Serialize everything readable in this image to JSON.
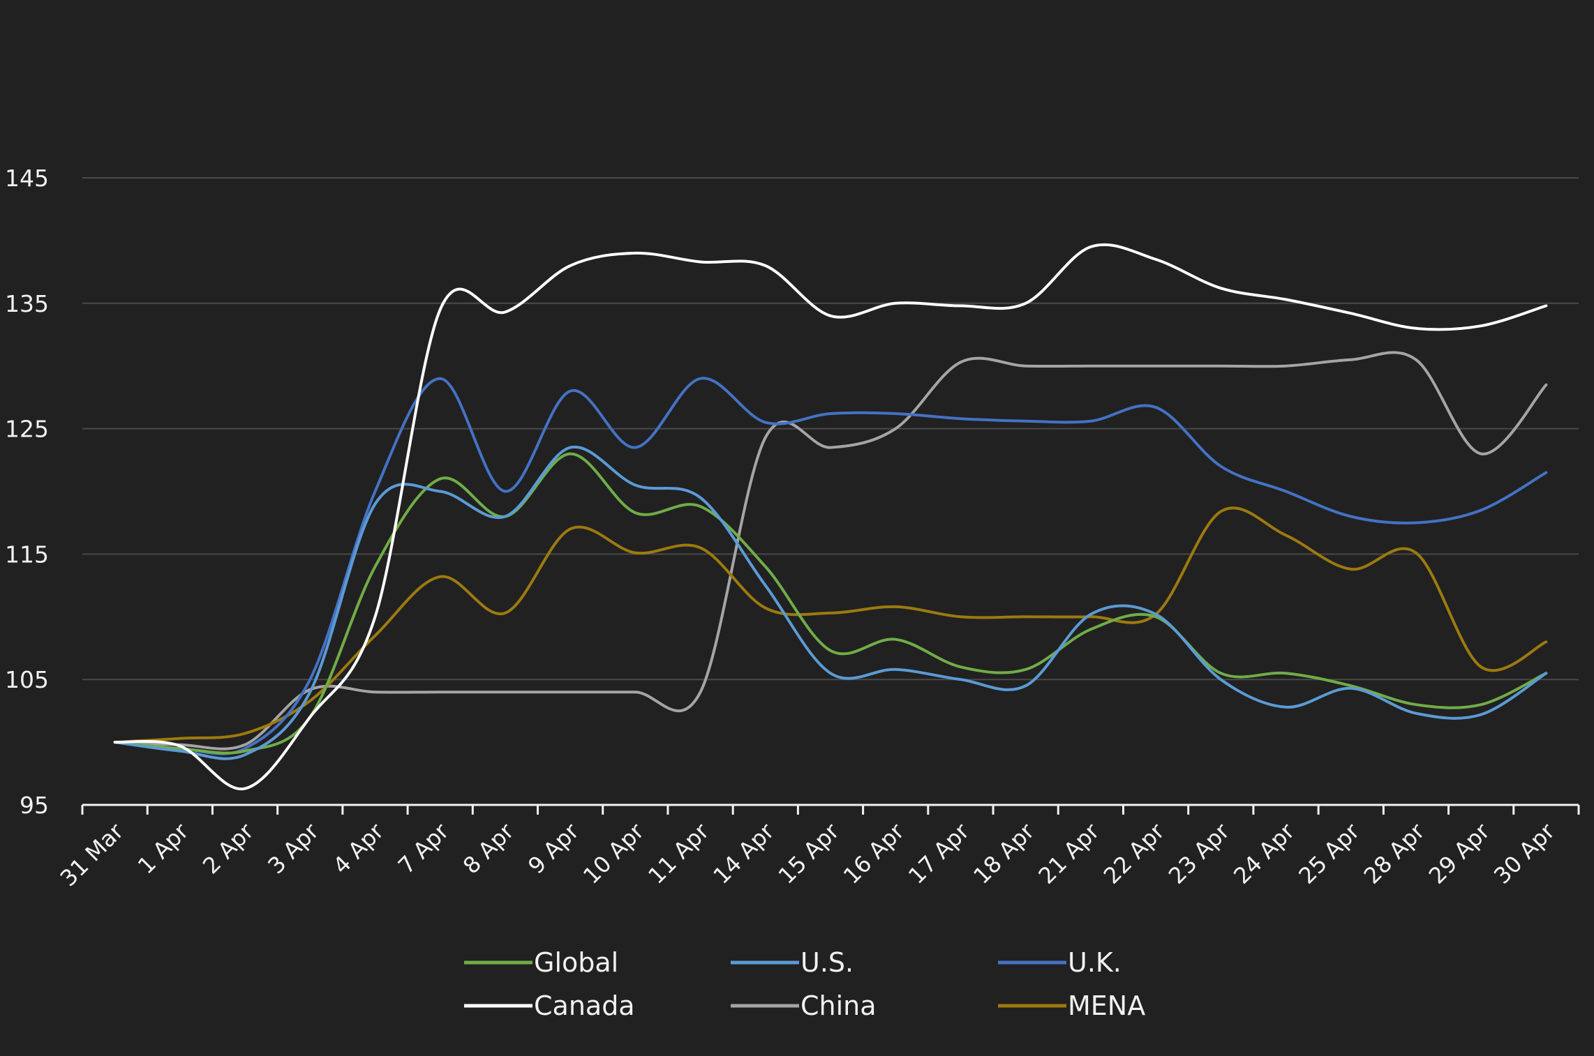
{
  "chart_data": {
    "type": "line",
    "title": "",
    "xlabel": "",
    "ylabel": "",
    "ylim": [
      95,
      145
    ],
    "yticks": [
      95,
      105,
      115,
      125,
      135,
      145
    ],
    "grid": true,
    "legend_position": "bottom",
    "categories": [
      "31 Mar",
      "1 Apr",
      "2 Apr",
      "3 Apr",
      "4 Apr",
      "7 Apr",
      "8 Apr",
      "9 Apr",
      "10 Apr",
      "11 Apr",
      "14 Apr",
      "15 Apr",
      "16 Apr",
      "17 Apr",
      "18 Apr",
      "21 Apr",
      "22 Apr",
      "23 Apr",
      "24 Apr",
      "25 Apr",
      "28 Apr",
      "29 Apr",
      "30 Apr"
    ],
    "series": [
      {
        "name": "Global",
        "color": "#70ad47",
        "values": [
          100,
          99.5,
          99.3,
          102,
          114,
          121,
          118,
          123,
          118.3,
          118.8,
          114,
          107.3,
          108.2,
          106,
          105.8,
          109,
          110,
          105.5,
          105.5,
          104.5,
          103,
          103,
          105.5
        ]
      },
      {
        "name": "U.S.",
        "color": "#5b9bd5",
        "values": [
          100,
          99.3,
          99,
          104,
          119,
          120,
          118,
          123.5,
          120.5,
          119.5,
          112.5,
          105.5,
          105.8,
          105,
          104.5,
          110.2,
          110.2,
          105,
          102.8,
          104.3,
          102.3,
          102.2,
          105.5
        ]
      },
      {
        "name": "U.K.",
        "color": "#4472c4",
        "values": [
          100,
          99.5,
          99.5,
          105,
          120,
          129,
          120,
          128,
          123.5,
          129,
          125.5,
          126.2,
          126.2,
          125.8,
          125.6,
          125.6,
          126.7,
          122,
          120,
          118,
          117.5,
          118.5,
          121.5
        ]
      },
      {
        "name": "Canada",
        "color": "#ffffff",
        "values": [
          100,
          99.7,
          96.3,
          102,
          110,
          134.5,
          134.3,
          138,
          139,
          138.3,
          138,
          134,
          135,
          134.8,
          135,
          139.5,
          138.5,
          136.2,
          135.3,
          134.2,
          133,
          133.2,
          134.8
        ]
      },
      {
        "name": "China",
        "color": "#a5a5a5",
        "values": [
          100,
          99.8,
          99.8,
          104.2,
          104,
          104,
          104,
          104,
          104,
          104,
          124.3,
          123.5,
          125,
          130.3,
          130,
          130,
          130,
          130,
          130,
          130.5,
          130.5,
          123,
          128.5
        ]
      },
      {
        "name": "MENA",
        "color": "#9c7a0f",
        "values": [
          100,
          100.3,
          100.7,
          103.3,
          108.5,
          113.2,
          110.3,
          117,
          115.1,
          115.5,
          110.7,
          110.3,
          110.8,
          110,
          110,
          110,
          110.2,
          118.4,
          116.5,
          113.8,
          115.1,
          106,
          108
        ]
      }
    ]
  }
}
